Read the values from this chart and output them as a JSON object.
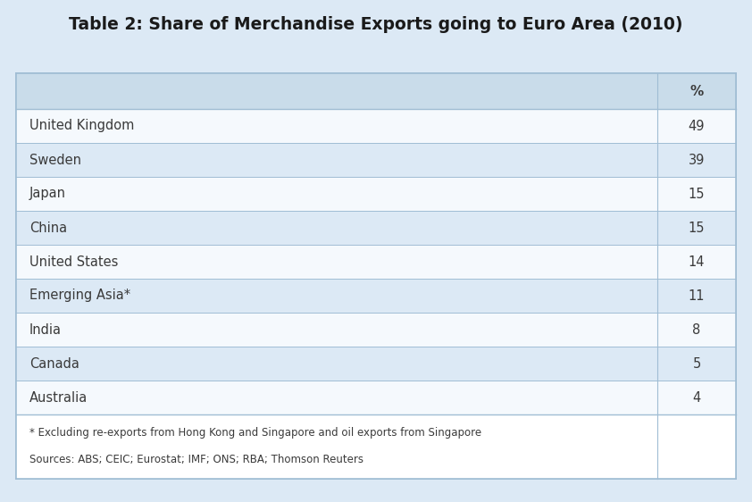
{
  "title": "Table 2: Share of Merchandise Exports going to Euro Area (2010)",
  "col_header": "%",
  "rows": [
    {
      "country": "United Kingdom",
      "value": "49"
    },
    {
      "country": "Sweden",
      "value": "39"
    },
    {
      "country": "Japan",
      "value": "15"
    },
    {
      "country": "China",
      "value": "15"
    },
    {
      "country": "United States",
      "value": "14"
    },
    {
      "country": "Emerging Asia*",
      "value": "11"
    },
    {
      "country": "India",
      "value": "8"
    },
    {
      "country": "Canada",
      "value": "5"
    },
    {
      "country": "Australia",
      "value": "4"
    }
  ],
  "footnote1": "* Excluding re-exports from Hong Kong and Singapore and oil exports from Singapore",
  "footnote2": "Sources: ABS; CEIC; Eurostat; IMF; ONS; RBA; Thomson Reuters",
  "header_bg": "#c9dcea",
  "alt_row_bg": "#dce9f5",
  "white_row_bg": "#f5f9fd",
  "border_color": "#a0bdd4",
  "text_color": "#3a3a3a",
  "title_color": "#1a1a1a",
  "outer_bg": "#dce9f5",
  "footnote_area_bg": "#ffffff"
}
